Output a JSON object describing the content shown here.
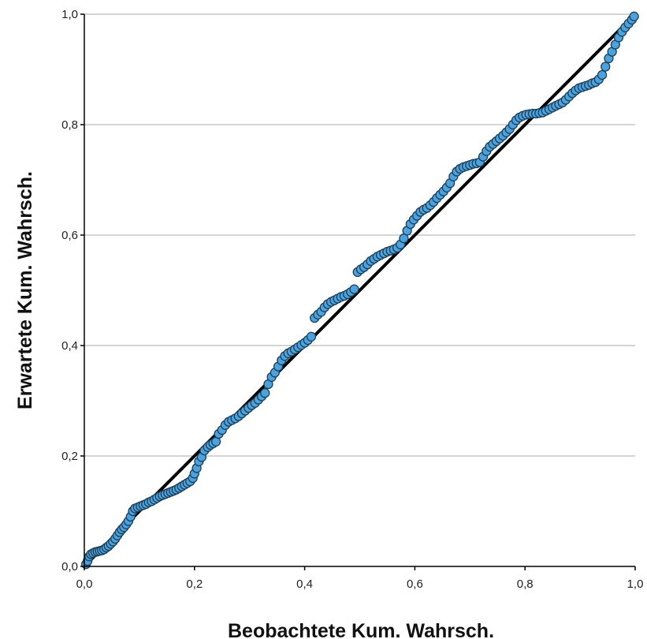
{
  "chart_data": {
    "type": "scatter",
    "xlabel": "Beobachtete Kum. Wahrsch.",
    "ylabel": "Erwartete Kum. Wahrsch.",
    "xlim": [
      0,
      1
    ],
    "ylim": [
      0,
      1
    ],
    "x_ticks": [
      "0,0",
      "0,2",
      "0,4",
      "0,6",
      "0,8",
      "1,0"
    ],
    "y_ticks": [
      "0,0",
      "0,2",
      "0,4",
      "0,6",
      "0,8",
      "1,0"
    ],
    "grid": "horizontal",
    "reference_line": [
      [
        0,
        0
      ],
      [
        1,
        1
      ]
    ],
    "colors": {
      "marker_fill": "#4aa3df",
      "marker_stroke": "#1f3f57",
      "reference_line": "#000000",
      "grid": "#aaaaaa"
    },
    "points": [
      [
        0.003,
        0.004
      ],
      [
        0.006,
        0.01
      ],
      [
        0.009,
        0.018
      ],
      [
        0.012,
        0.022
      ],
      [
        0.016,
        0.024
      ],
      [
        0.02,
        0.026
      ],
      [
        0.024,
        0.027
      ],
      [
        0.028,
        0.028
      ],
      [
        0.032,
        0.029
      ],
      [
        0.036,
        0.031
      ],
      [
        0.04,
        0.034
      ],
      [
        0.044,
        0.037
      ],
      [
        0.048,
        0.041
      ],
      [
        0.052,
        0.045
      ],
      [
        0.056,
        0.05
      ],
      [
        0.06,
        0.056
      ],
      [
        0.064,
        0.062
      ],
      [
        0.068,
        0.067
      ],
      [
        0.072,
        0.071
      ],
      [
        0.076,
        0.076
      ],
      [
        0.08,
        0.082
      ],
      [
        0.084,
        0.09
      ],
      [
        0.088,
        0.1
      ],
      [
        0.092,
        0.105
      ],
      [
        0.097,
        0.107
      ],
      [
        0.102,
        0.109
      ],
      [
        0.107,
        0.111
      ],
      [
        0.112,
        0.113
      ],
      [
        0.117,
        0.116
      ],
      [
        0.122,
        0.118
      ],
      [
        0.127,
        0.121
      ],
      [
        0.132,
        0.124
      ],
      [
        0.137,
        0.127
      ],
      [
        0.142,
        0.129
      ],
      [
        0.147,
        0.131
      ],
      [
        0.152,
        0.133
      ],
      [
        0.157,
        0.135
      ],
      [
        0.162,
        0.137
      ],
      [
        0.167,
        0.139
      ],
      [
        0.172,
        0.142
      ],
      [
        0.177,
        0.145
      ],
      [
        0.182,
        0.148
      ],
      [
        0.187,
        0.151
      ],
      [
        0.192,
        0.154
      ],
      [
        0.197,
        0.16
      ],
      [
        0.2,
        0.168
      ],
      [
        0.204,
        0.178
      ],
      [
        0.208,
        0.19
      ],
      [
        0.213,
        0.198
      ],
      [
        0.218,
        0.21
      ],
      [
        0.224,
        0.216
      ],
      [
        0.229,
        0.22
      ],
      [
        0.234,
        0.223
      ],
      [
        0.239,
        0.226
      ],
      [
        0.244,
        0.24
      ],
      [
        0.25,
        0.247
      ],
      [
        0.256,
        0.256
      ],
      [
        0.262,
        0.262
      ],
      [
        0.268,
        0.265
      ],
      [
        0.274,
        0.268
      ],
      [
        0.28,
        0.272
      ],
      [
        0.286,
        0.277
      ],
      [
        0.292,
        0.282
      ],
      [
        0.298,
        0.287
      ],
      [
        0.304,
        0.292
      ],
      [
        0.31,
        0.296
      ],
      [
        0.316,
        0.302
      ],
      [
        0.322,
        0.308
      ],
      [
        0.328,
        0.314
      ],
      [
        0.334,
        0.33
      ],
      [
        0.34,
        0.343
      ],
      [
        0.346,
        0.351
      ],
      [
        0.352,
        0.362
      ],
      [
        0.358,
        0.373
      ],
      [
        0.364,
        0.381
      ],
      [
        0.37,
        0.386
      ],
      [
        0.376,
        0.389
      ],
      [
        0.382,
        0.393
      ],
      [
        0.388,
        0.397
      ],
      [
        0.394,
        0.401
      ],
      [
        0.4,
        0.405
      ],
      [
        0.406,
        0.41
      ],
      [
        0.412,
        0.416
      ],
      [
        0.418,
        0.45
      ],
      [
        0.424,
        0.456
      ],
      [
        0.43,
        0.461
      ],
      [
        0.436,
        0.469
      ],
      [
        0.442,
        0.475
      ],
      [
        0.448,
        0.479
      ],
      [
        0.454,
        0.482
      ],
      [
        0.46,
        0.485
      ],
      [
        0.466,
        0.488
      ],
      [
        0.472,
        0.49
      ],
      [
        0.478,
        0.493
      ],
      [
        0.484,
        0.497
      ],
      [
        0.49,
        0.502
      ],
      [
        0.496,
        0.533
      ],
      [
        0.502,
        0.538
      ],
      [
        0.508,
        0.542
      ],
      [
        0.514,
        0.547
      ],
      [
        0.52,
        0.553
      ],
      [
        0.526,
        0.557
      ],
      [
        0.532,
        0.561
      ],
      [
        0.538,
        0.564
      ],
      [
        0.544,
        0.567
      ],
      [
        0.55,
        0.57
      ],
      [
        0.556,
        0.572
      ],
      [
        0.562,
        0.574
      ],
      [
        0.568,
        0.577
      ],
      [
        0.574,
        0.583
      ],
      [
        0.58,
        0.594
      ],
      [
        0.586,
        0.608
      ],
      [
        0.592,
        0.62
      ],
      [
        0.598,
        0.628
      ],
      [
        0.604,
        0.635
      ],
      [
        0.61,
        0.642
      ],
      [
        0.616,
        0.646
      ],
      [
        0.622,
        0.649
      ],
      [
        0.628,
        0.654
      ],
      [
        0.634,
        0.66
      ],
      [
        0.64,
        0.667
      ],
      [
        0.646,
        0.673
      ],
      [
        0.652,
        0.679
      ],
      [
        0.658,
        0.686
      ],
      [
        0.664,
        0.694
      ],
      [
        0.67,
        0.706
      ],
      [
        0.676,
        0.715
      ],
      [
        0.682,
        0.72
      ],
      [
        0.688,
        0.723
      ],
      [
        0.694,
        0.725
      ],
      [
        0.7,
        0.727
      ],
      [
        0.706,
        0.729
      ],
      [
        0.712,
        0.73
      ],
      [
        0.718,
        0.732
      ],
      [
        0.724,
        0.742
      ],
      [
        0.73,
        0.752
      ],
      [
        0.736,
        0.76
      ],
      [
        0.742,
        0.765
      ],
      [
        0.748,
        0.77
      ],
      [
        0.754,
        0.775
      ],
      [
        0.76,
        0.78
      ],
      [
        0.766,
        0.786
      ],
      [
        0.772,
        0.792
      ],
      [
        0.778,
        0.8
      ],
      [
        0.784,
        0.808
      ],
      [
        0.79,
        0.813
      ],
      [
        0.796,
        0.816
      ],
      [
        0.802,
        0.818
      ],
      [
        0.808,
        0.819
      ],
      [
        0.814,
        0.82
      ],
      [
        0.82,
        0.82
      ],
      [
        0.826,
        0.821
      ],
      [
        0.832,
        0.822
      ],
      [
        0.838,
        0.825
      ],
      [
        0.844,
        0.828
      ],
      [
        0.85,
        0.831
      ],
      [
        0.856,
        0.834
      ],
      [
        0.862,
        0.837
      ],
      [
        0.868,
        0.84
      ],
      [
        0.874,
        0.845
      ],
      [
        0.88,
        0.851
      ],
      [
        0.886,
        0.857
      ],
      [
        0.892,
        0.862
      ],
      [
        0.898,
        0.866
      ],
      [
        0.904,
        0.868
      ],
      [
        0.91,
        0.87
      ],
      [
        0.916,
        0.872
      ],
      [
        0.922,
        0.875
      ],
      [
        0.928,
        0.877
      ],
      [
        0.934,
        0.882
      ],
      [
        0.94,
        0.89
      ],
      [
        0.946,
        0.905
      ],
      [
        0.952,
        0.92
      ],
      [
        0.958,
        0.932
      ],
      [
        0.964,
        0.945
      ],
      [
        0.97,
        0.958
      ],
      [
        0.976,
        0.968
      ],
      [
        0.982,
        0.976
      ],
      [
        0.988,
        0.983
      ],
      [
        0.994,
        0.99
      ],
      [
        0.998,
        0.996
      ]
    ]
  }
}
